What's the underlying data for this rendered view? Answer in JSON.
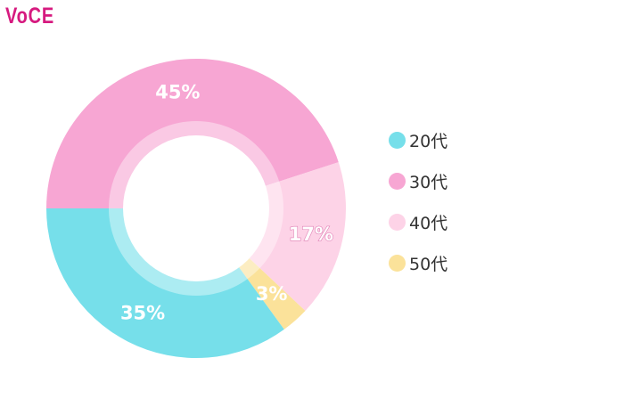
{
  "brand": {
    "logo_text": "VoCE",
    "color": "#d61a7f"
  },
  "chart_data": {
    "type": "pie",
    "donut": true,
    "categories": [
      "20代",
      "30代",
      "40代",
      "50代"
    ],
    "values": [
      35,
      45,
      17,
      3
    ],
    "labels": [
      "35%",
      "45%",
      "17%",
      "3%"
    ],
    "colors": [
      "#76dfea",
      "#f7a6d3",
      "#fdd3e7",
      "#fbe29a"
    ],
    "legend_position": "right"
  }
}
